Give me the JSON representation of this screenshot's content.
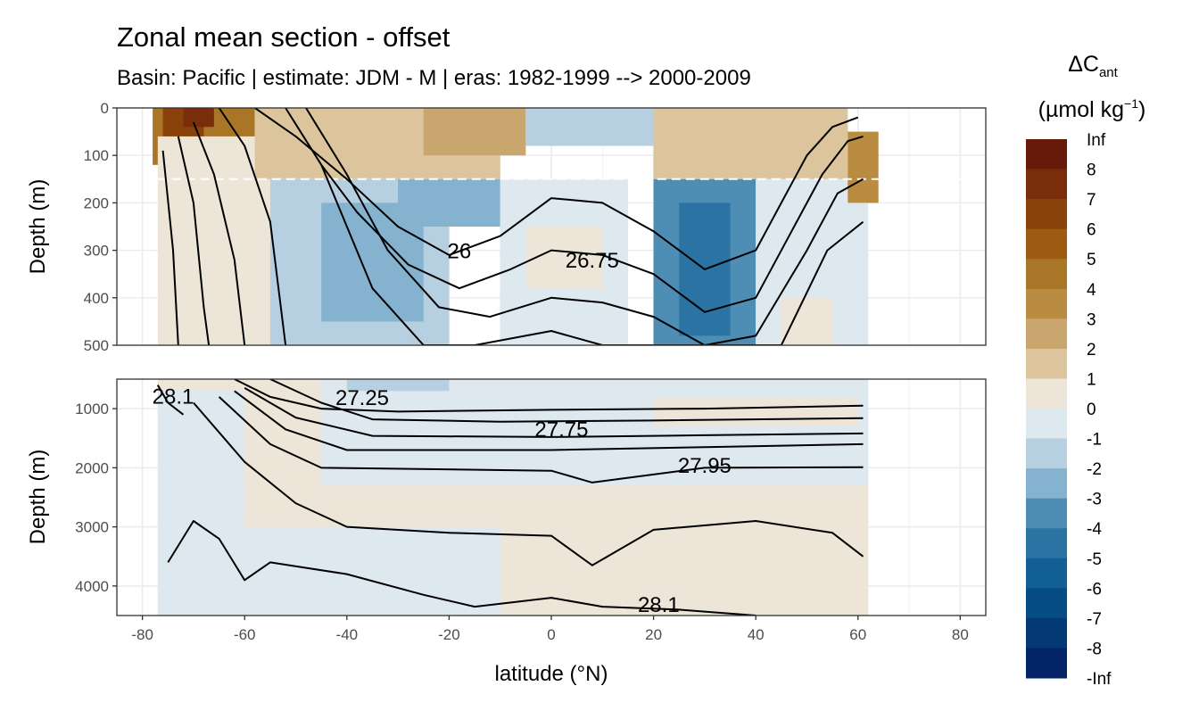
{
  "chart_data": {
    "type": "heatmap",
    "title": "Zonal mean section - offset",
    "subtitle": "Basin: Pacific | estimate: JDM - M | eras: 1982-1999 --> 2000-2009",
    "xlabel": "latitude (°N)",
    "ylabel": "Depth (m)",
    "xlim": [
      -85,
      85
    ],
    "x_ticks": [
      "-80",
      "-60",
      "-40",
      "-20",
      "0",
      "20",
      "40",
      "60",
      "80"
    ],
    "data_extent_lat": [
      -77,
      62
    ],
    "panels": [
      {
        "name": "upper",
        "ylim": [
          0,
          500
        ],
        "y_reversed": true,
        "y_ticks": [
          "0",
          "100",
          "200",
          "300",
          "400",
          "500"
        ],
        "dashed_reference_depth": 150,
        "fields": [
          {
            "lat_range": [
              -78,
              -58
            ],
            "depth_range": [
              0,
              120
            ],
            "bin": "5"
          },
          {
            "lat_range": [
              -76,
              -68
            ],
            "depth_range": [
              0,
              60
            ],
            "bin": "7"
          },
          {
            "lat_range": [
              -72,
              -66
            ],
            "depth_range": [
              0,
              40
            ],
            "bin": "8"
          },
          {
            "lat_range": [
              -77,
              -55
            ],
            "depth_range": [
              60,
              500
            ],
            "bin": "1"
          },
          {
            "lat_range": [
              -58,
              -10
            ],
            "depth_range": [
              0,
              150
            ],
            "bin": "2"
          },
          {
            "lat_range": [
              -25,
              -5
            ],
            "depth_range": [
              0,
              100
            ],
            "bin": "3"
          },
          {
            "lat_range": [
              -5,
              40
            ],
            "depth_range": [
              0,
              80
            ],
            "bin": "-1"
          },
          {
            "lat_range": [
              20,
              58
            ],
            "depth_range": [
              0,
              150
            ],
            "bin": "2"
          },
          {
            "lat_range": [
              -55,
              -20
            ],
            "depth_range": [
              150,
              500
            ],
            "bin": "-1"
          },
          {
            "lat_range": [
              -45,
              -25
            ],
            "depth_range": [
              200,
              450
            ],
            "bin": "-2"
          },
          {
            "lat_range": [
              -30,
              -10
            ],
            "depth_range": [
              150,
              250
            ],
            "bin": "-2"
          },
          {
            "lat_range": [
              -10,
              15
            ],
            "depth_range": [
              150,
              500
            ],
            "bin": "0"
          },
          {
            "lat_range": [
              -5,
              10
            ],
            "depth_range": [
              250,
              380
            ],
            "bin": "1"
          },
          {
            "lat_range": [
              20,
              40
            ],
            "depth_range": [
              150,
              500
            ],
            "bin": "-3"
          },
          {
            "lat_range": [
              25,
              35
            ],
            "depth_range": [
              200,
              480
            ],
            "bin": "-4"
          },
          {
            "lat_range": [
              40,
              62
            ],
            "depth_range": [
              150,
              500
            ],
            "bin": "0"
          },
          {
            "lat_range": [
              45,
              55
            ],
            "depth_range": [
              400,
              500
            ],
            "bin": "1"
          },
          {
            "lat_range": [
              58,
              64
            ],
            "depth_range": [
              50,
              200
            ],
            "bin": "4"
          }
        ],
        "isopycnals": [
          {
            "label": "26",
            "label_pos": [
              -18,
              300
            ],
            "points": [
              [
                -58,
                0
              ],
              [
                -50,
                60
              ],
              [
                -40,
                150
              ],
              [
                -30,
                250
              ],
              [
                -20,
                310
              ],
              [
                -10,
                270
              ],
              [
                0,
                190
              ],
              [
                10,
                200
              ],
              [
                20,
                260
              ],
              [
                30,
                340
              ],
              [
                40,
                300
              ],
              [
                45,
                200
              ],
              [
                50,
                100
              ],
              [
                55,
                40
              ],
              [
                60,
                20
              ]
            ]
          },
          {
            "label": "26.75",
            "label_pos": [
              8,
              320
            ],
            "points": [
              [
                -52,
                0
              ],
              [
                -45,
                120
              ],
              [
                -38,
                220
              ],
              [
                -28,
                330
              ],
              [
                -18,
                380
              ],
              [
                -8,
                340
              ],
              [
                0,
                300
              ],
              [
                10,
                310
              ],
              [
                20,
                350
              ],
              [
                30,
                430
              ],
              [
                40,
                400
              ],
              [
                47,
                260
              ],
              [
                53,
                140
              ],
              [
                58,
                70
              ],
              [
                61,
                60
              ]
            ]
          },
          {
            "label": "",
            "label_pos": null,
            "points": [
              [
                -48,
                0
              ],
              [
                -40,
                140
              ],
              [
                -32,
                300
              ],
              [
                -22,
                420
              ],
              [
                -12,
                440
              ],
              [
                0,
                400
              ],
              [
                10,
                410
              ],
              [
                20,
                440
              ],
              [
                30,
                500
              ],
              [
                40,
                480
              ],
              [
                50,
                300
              ],
              [
                56,
                180
              ],
              [
                61,
                150
              ]
            ]
          },
          {
            "label": "",
            "label_pos": null,
            "points": [
              [
                -45,
                120
              ],
              [
                -35,
                380
              ],
              [
                -25,
                500
              ],
              [
                -15,
                500
              ],
              [
                0,
                470
              ],
              [
                10,
                500
              ],
              [
                45,
                500
              ],
              [
                54,
                300
              ],
              [
                61,
                240
              ]
            ]
          },
          {
            "label": "",
            "label_pos": null,
            "points": [
              [
                -65,
                0
              ],
              [
                -60,
                80
              ],
              [
                -55,
                240
              ],
              [
                -52,
                500
              ]
            ]
          },
          {
            "label": "",
            "label_pos": null,
            "points": [
              [
                -70,
                30
              ],
              [
                -66,
                140
              ],
              [
                -62,
                320
              ],
              [
                -60,
                500
              ]
            ]
          },
          {
            "label": "",
            "label_pos": null,
            "points": [
              [
                -73,
                60
              ],
              [
                -70,
                200
              ],
              [
                -68,
                420
              ],
              [
                -67,
                500
              ]
            ]
          },
          {
            "label": "",
            "label_pos": null,
            "points": [
              [
                -76,
                90
              ],
              [
                -74,
                300
              ],
              [
                -73,
                500
              ]
            ]
          }
        ]
      },
      {
        "name": "lower",
        "ylim": [
          500,
          4500
        ],
        "y_reversed": true,
        "y_ticks": [
          "1000",
          "2000",
          "3000",
          "4000"
        ],
        "fields": [
          {
            "lat_range": [
              -77,
              62
            ],
            "depth_range": [
              500,
              4500
            ],
            "bin": "1"
          },
          {
            "lat_range": [
              -45,
              62
            ],
            "depth_range": [
              500,
              2300
            ],
            "bin": "0"
          },
          {
            "lat_range": [
              -77,
              -60
            ],
            "depth_range": [
              700,
              4500
            ],
            "bin": "0"
          },
          {
            "lat_range": [
              -60,
              -10
            ],
            "depth_range": [
              3000,
              4500
            ],
            "bin": "0"
          },
          {
            "lat_range": [
              20,
              60
            ],
            "depth_range": [
              800,
              1300
            ],
            "bin": "1"
          },
          {
            "lat_range": [
              -40,
              -20
            ],
            "depth_range": [
              500,
              700
            ],
            "bin": "-1"
          }
        ],
        "isopycnals": [
          {
            "label": "28.1",
            "label_pos": [
              -74,
              780
            ],
            "points": [
              [
                -77,
                600
              ],
              [
                -75,
                900
              ],
              [
                -72,
                1100
              ]
            ]
          },
          {
            "label": "27.25",
            "label_pos": [
              -37,
              800
            ],
            "points": [
              [
                -62,
                500
              ],
              [
                -55,
                800
              ],
              [
                -45,
                1000
              ],
              [
                -30,
                1050
              ],
              [
                0,
                1020
              ],
              [
                30,
                1000
              ],
              [
                61,
                950
              ]
            ]
          },
          {
            "label": "",
            "label_pos": null,
            "points": [
              [
                -55,
                500
              ],
              [
                -45,
                900
              ],
              [
                -35,
                1180
              ],
              [
                -10,
                1220
              ],
              [
                20,
                1200
              ],
              [
                61,
                1160
              ]
            ]
          },
          {
            "label": "27.75",
            "label_pos": [
              2,
              1340
            ],
            "points": [
              [
                -60,
                650
              ],
              [
                -50,
                1150
              ],
              [
                -35,
                1460
              ],
              [
                0,
                1480
              ],
              [
                30,
                1450
              ],
              [
                61,
                1420
              ]
            ]
          },
          {
            "label": "",
            "label_pos": null,
            "points": [
              [
                -62,
                700
              ],
              [
                -52,
                1350
              ],
              [
                -40,
                1700
              ],
              [
                0,
                1700
              ],
              [
                30,
                1650
              ],
              [
                61,
                1600
              ]
            ]
          },
          {
            "label": "27.95",
            "label_pos": [
              30,
              1950
            ],
            "points": [
              [
                -65,
                800
              ],
              [
                -55,
                1600
              ],
              [
                -45,
                2000
              ],
              [
                0,
                2050
              ],
              [
                8,
                2250
              ],
              [
                30,
                2000
              ],
              [
                61,
                1990
              ]
            ]
          },
          {
            "label": "",
            "label_pos": null,
            "points": [
              [
                -70,
                900
              ],
              [
                -60,
                1900
              ],
              [
                -50,
                2600
              ],
              [
                -40,
                3000
              ],
              [
                -20,
                3100
              ],
              [
                0,
                3150
              ],
              [
                8,
                3650
              ],
              [
                20,
                3050
              ],
              [
                40,
                2900
              ],
              [
                55,
                3100
              ],
              [
                61,
                3500
              ]
            ]
          },
          {
            "label": "28.1",
            "label_pos": [
              21,
              4300
            ],
            "points": [
              [
                -75,
                3600
              ],
              [
                -70,
                2900
              ],
              [
                -65,
                3200
              ],
              [
                -60,
                3900
              ],
              [
                -55,
                3600
              ],
              [
                -40,
                3800
              ],
              [
                -25,
                4150
              ],
              [
                -15,
                4350
              ],
              [
                0,
                4200
              ],
              [
                10,
                4350
              ],
              [
                25,
                4400
              ],
              [
                40,
                4500
              ]
            ]
          }
        ]
      }
    ],
    "legend": {
      "title": "ΔC",
      "title_subscript": "ant",
      "units": "(µmol kg",
      "units_superscript": "−1",
      "units_close": ")",
      "placement": "right",
      "bins": [
        {
          "label": "Inf",
          "color": "#67190a"
        },
        {
          "label": "8",
          "color": "#7a2d0a"
        },
        {
          "label": "7",
          "color": "#8a420b"
        },
        {
          "label": "6",
          "color": "#9c5b10"
        },
        {
          "label": "5",
          "color": "#a97628"
        },
        {
          "label": "4",
          "color": "#b98c42"
        },
        {
          "label": "3",
          "color": "#c9a66e"
        },
        {
          "label": "2",
          "color": "#dcc59c"
        },
        {
          "label": "1",
          "color": "#ece5d8"
        },
        {
          "label": "0",
          "color": "#dde8ef"
        },
        {
          "label": "-1",
          "color": "#b6cfe1"
        },
        {
          "label": "-2",
          "color": "#85b2ce"
        },
        {
          "label": "-3",
          "color": "#4e8eb5"
        },
        {
          "label": "-4",
          "color": "#2a73a2"
        },
        {
          "label": "-5",
          "color": "#115f94"
        },
        {
          "label": "-6",
          "color": "#064c85"
        },
        {
          "label": "-7",
          "color": "#043a73"
        },
        {
          "label": "-8",
          "color": "#022466"
        },
        {
          "label": "-Inf",
          "color": ""
        }
      ]
    }
  }
}
